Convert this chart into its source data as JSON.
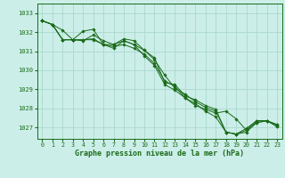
{
  "title": "Graphe pression niveau de la mer (hPa)",
  "background_color": "#cceee8",
  "grid_color": "#aad8d0",
  "line_color": "#1a6b1a",
  "xlim": [
    -0.5,
    23.5
  ],
  "ylim": [
    1026.4,
    1033.5
  ],
  "yticks": [
    1027,
    1028,
    1029,
    1030,
    1031,
    1032,
    1033
  ],
  "xticks": [
    0,
    1,
    2,
    3,
    4,
    5,
    6,
    7,
    8,
    9,
    10,
    11,
    12,
    13,
    14,
    15,
    16,
    17,
    18,
    19,
    20,
    21,
    22,
    23
  ],
  "lines": [
    {
      "x": [
        0,
        1,
        2,
        3,
        4,
        5,
        6,
        7,
        8,
        9,
        10,
        11,
        12,
        13,
        14,
        15,
        16,
        17,
        18,
        19,
        20,
        21,
        22,
        23
      ],
      "y": [
        1032.6,
        1032.4,
        1032.1,
        1031.6,
        1031.55,
        1031.85,
        1031.55,
        1031.35,
        1031.65,
        1031.55,
        1031.05,
        1030.65,
        1029.35,
        1029.25,
        1028.65,
        1028.45,
        1028.15,
        1027.95,
        1026.75,
        1026.65,
        1026.95,
        1027.35,
        1027.35,
        1027.15
      ]
    },
    {
      "x": [
        0,
        1,
        2,
        3,
        4,
        5,
        6,
        7,
        8,
        9,
        10,
        11,
        12,
        13,
        14,
        15,
        16,
        17,
        18,
        19,
        20,
        21,
        22,
        23
      ],
      "y": [
        1032.6,
        1032.4,
        1031.6,
        1031.6,
        1032.05,
        1032.15,
        1031.35,
        1031.35,
        1031.55,
        1031.35,
        1031.05,
        1030.55,
        1029.75,
        1029.05,
        1028.75,
        1028.35,
        1028.05,
        1027.85,
        1026.75,
        1026.65,
        1026.85,
        1027.35,
        1027.35,
        1027.15
      ]
    },
    {
      "x": [
        0,
        1,
        2,
        3,
        4,
        5,
        6,
        7,
        8,
        9,
        10,
        11,
        12,
        13,
        14,
        15,
        16,
        17,
        18,
        19,
        20,
        21,
        22,
        23
      ],
      "y": [
        1032.6,
        1032.4,
        1031.6,
        1031.6,
        1031.6,
        1031.6,
        1031.35,
        1031.25,
        1031.35,
        1031.15,
        1030.85,
        1030.35,
        1029.45,
        1029.15,
        1028.55,
        1028.25,
        1027.85,
        1027.55,
        1026.75,
        1026.65,
        1026.75,
        1027.25,
        1027.35,
        1027.05
      ]
    },
    {
      "x": [
        0,
        1,
        2,
        3,
        4,
        5,
        6,
        7,
        8,
        9,
        10,
        11,
        12,
        13,
        14,
        15,
        16,
        17,
        18,
        19,
        20,
        21,
        22,
        23
      ],
      "y": [
        1032.6,
        1032.4,
        1031.6,
        1031.6,
        1031.6,
        1031.65,
        1031.35,
        1031.15,
        1031.55,
        1031.35,
        1030.75,
        1030.25,
        1029.25,
        1028.95,
        1028.55,
        1028.15,
        1027.95,
        1027.75,
        1027.85,
        1027.45,
        1026.85,
        1027.25,
        1027.35,
        1027.05
      ]
    }
  ]
}
